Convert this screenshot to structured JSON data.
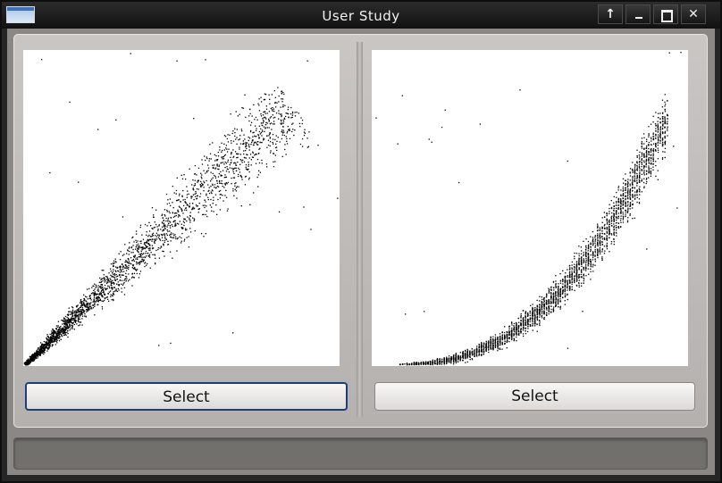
{
  "window": {
    "title": "User Study",
    "controls": {
      "up_glyph": "↑",
      "close_glyph": "✕"
    }
  },
  "plots": [
    {
      "shape": "linear-fan-scatter",
      "select_label": "Select",
      "focused": true
    },
    {
      "shape": "convex-curve-scatter",
      "select_label": "Select",
      "focused": false
    }
  ],
  "status": {
    "text": ""
  },
  "colors": {
    "titlebar": "#1a1a1a",
    "panel": "#c0bdba",
    "focus_border": "#1f3d78",
    "status_bar": "#72706d",
    "point": "#000000"
  }
}
